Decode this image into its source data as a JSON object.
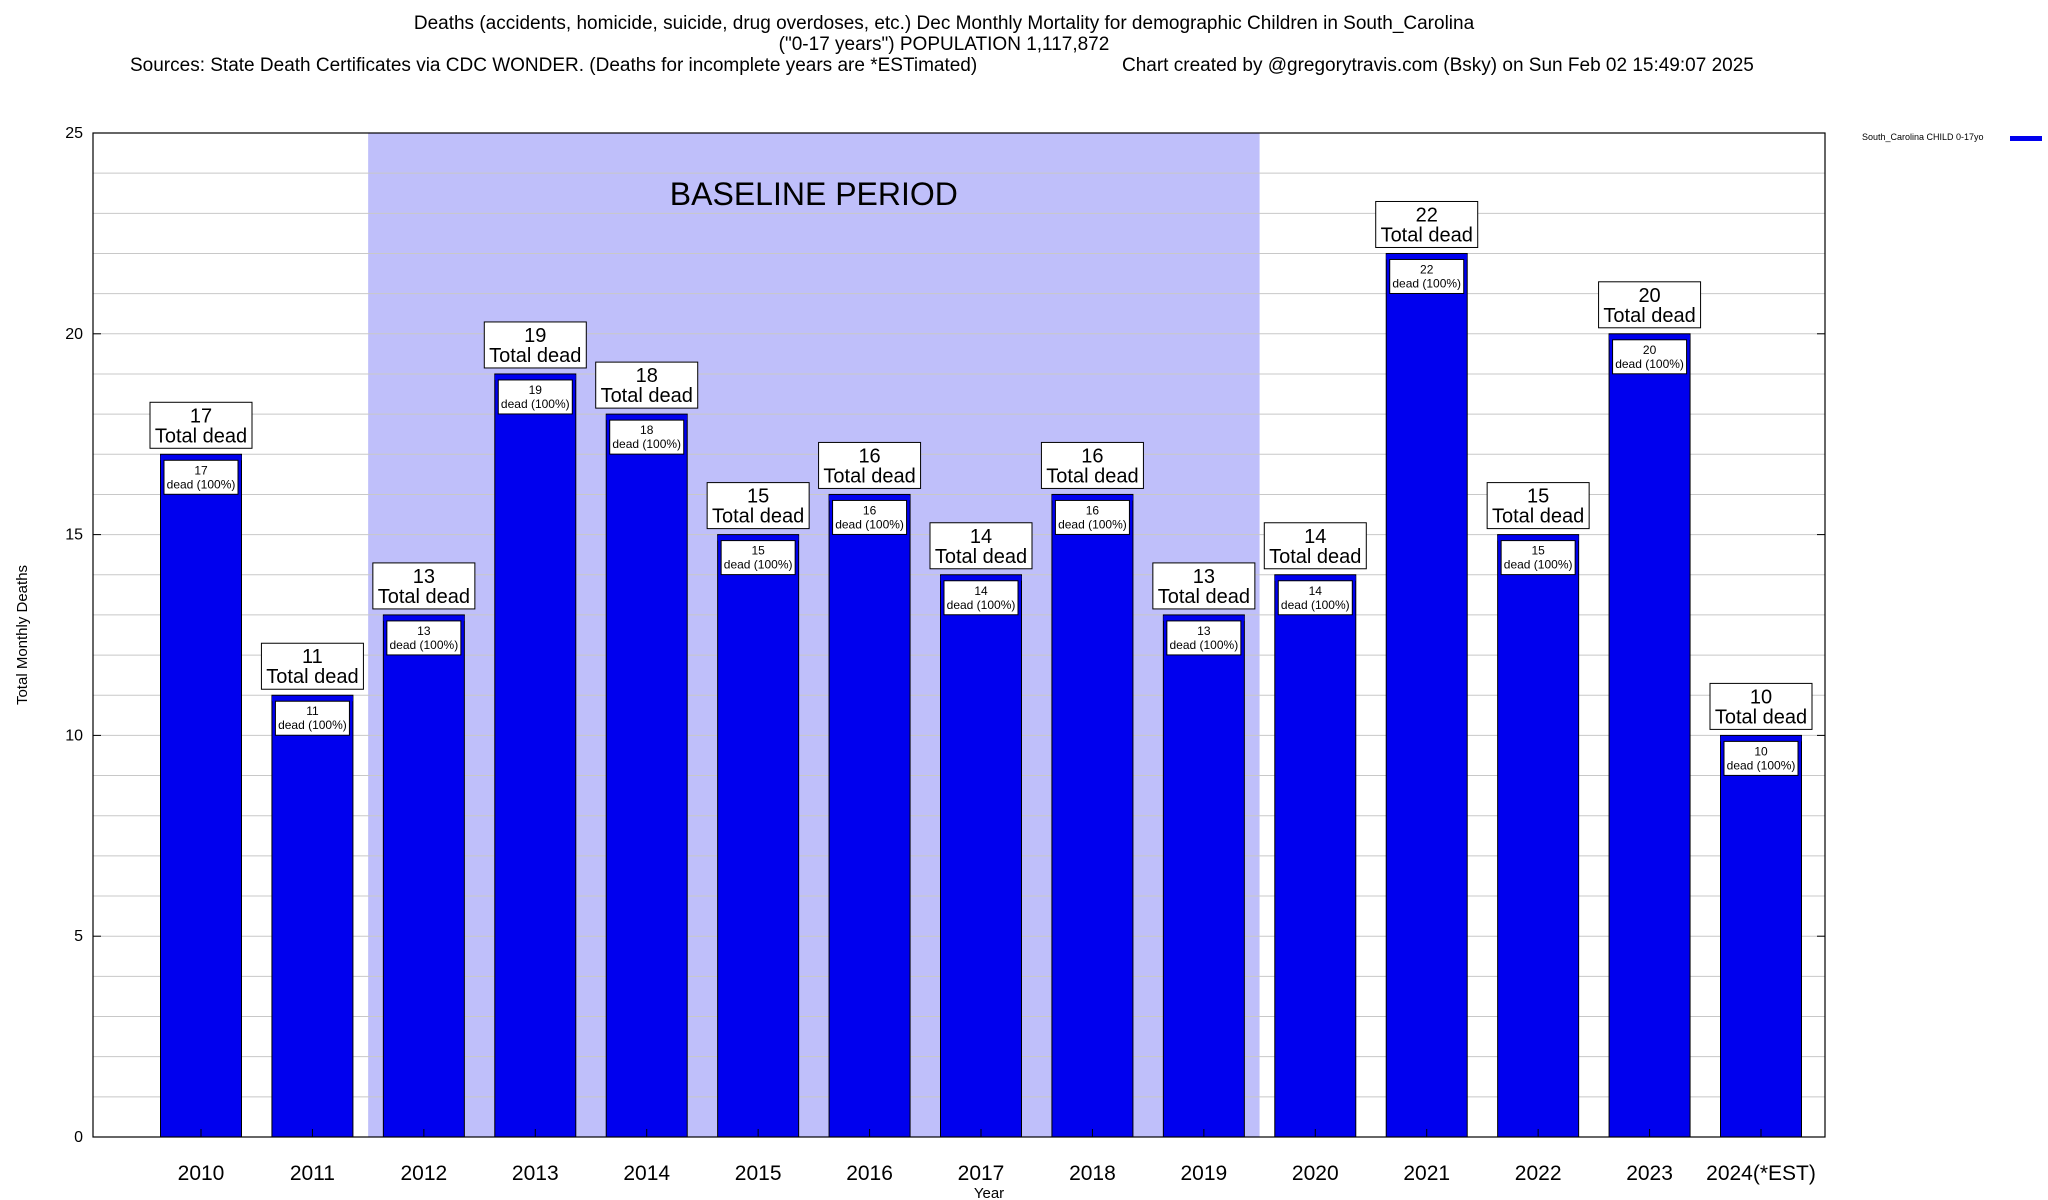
{
  "title": {
    "line1": "Deaths (accidents, homicide, suicide, drug overdoses, etc.) Dec Monthly Mortality for demographic Children in South_Carolina",
    "line2": "(\"0-17 years\") POPULATION 1,117,872",
    "sources": "Sources: State Death Certificates via CDC WONDER. (Deaths for incomplete years are *ESTimated)",
    "credit": "Chart created by @gregorytravis.com (Bsky) on Sun Feb 02 15:49:07 2025"
  },
  "legend": {
    "label": "South_Carolina CHILD 0-17yo",
    "color": "#0000ee"
  },
  "colors": {
    "bar": "#0000ee",
    "bar_edge": "#000000",
    "baseline_band": "#bfbffa",
    "grid": "#c8c8c8"
  },
  "chart_data": {
    "type": "bar",
    "xlabel": "Year",
    "ylabel": "Total Monthly Deaths",
    "ylim": [
      0,
      25
    ],
    "yticks": [
      0,
      5,
      10,
      15,
      20,
      25
    ],
    "grid": true,
    "legend_position": "top-right",
    "categories": [
      "2010",
      "2011",
      "2012",
      "2013",
      "2014",
      "2015",
      "2016",
      "2017",
      "2018",
      "2019",
      "2020",
      "2021",
      "2022",
      "2023",
      "2024(*EST)"
    ],
    "series": [
      {
        "name": "South_Carolina CHILD 0-17yo",
        "values": [
          17,
          11,
          13,
          19,
          18,
          15,
          16,
          14,
          16,
          13,
          14,
          22,
          15,
          20,
          10
        ]
      }
    ],
    "total_label_text": "Total dead",
    "inner_label_text": "dead (100%)",
    "baseline_period": {
      "label": "BASELINE PERIOD",
      "from": "2012",
      "to": "2019"
    }
  }
}
